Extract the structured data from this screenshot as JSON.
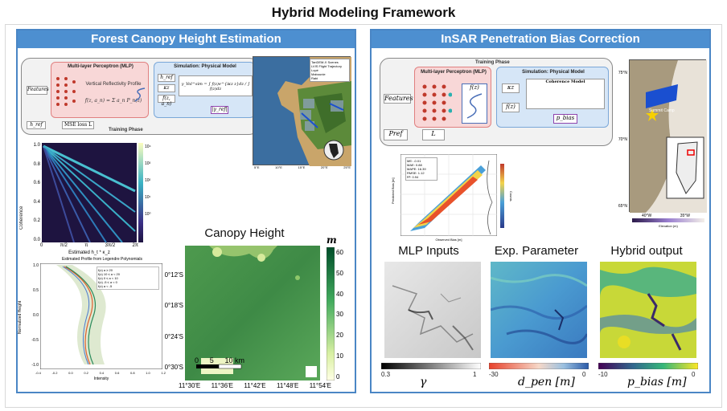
{
  "title": "Hybrid Modeling Framework",
  "left": {
    "header": "Forest Canopy Height Estimation",
    "flow": {
      "features": "Features",
      "mlp_title": "Multi-layer Perceptron (MLP)",
      "profile_title": "Vertical Reflectivity Profile",
      "profile_formula": "f(z, a_n) = Σ a_n P_n(z)",
      "sim_title": "Simulation: Physical Model",
      "h_ref": "h_ref",
      "kz": "κz",
      "fz": "f(z, a_n)",
      "gamma_formula": "γ_Vol^sim = ∫ f(z)e^{iκz z}dz / ∫ f(z)dz",
      "gamma_ref": "|γ_ref|",
      "h_obs": "h_ref",
      "loss": "MSE loss L",
      "phase": "Training Phase"
    },
    "map": {
      "legend": [
        "TanDEM-X Scenes",
        "LVIS Flight Trajectory",
        "Lopé",
        "Mabounie",
        "Rabi"
      ],
      "lon_ticks": [
        "5°E",
        "10°E",
        "15°E",
        "20°E",
        "25°E"
      ],
      "lat_ticks": [
        "5°N",
        "0°",
        "5°S",
        "10°S"
      ],
      "scale": "0 500 1000 km"
    },
    "heatmap": {
      "ylabel": "Coherence",
      "xlabel": "Estimated h_t * κ_z",
      "yticks": [
        "1.0",
        "0.8",
        "0.6",
        "0.4",
        "0.2",
        "0.0"
      ],
      "xticks": [
        "0",
        "π/2",
        "π",
        "3π/2",
        "2π"
      ],
      "cbar": [
        "10⁴",
        "10³",
        "10²",
        "10¹",
        "10⁰"
      ]
    },
    "profile": {
      "title": "Estimated Profile from Legendre Polynomials",
      "ylabel": "Normalized Height",
      "xlabel": "Intensity",
      "legend": [
        "f(z) a ≥ 20",
        "f(z) 10 ≤ a < 20",
        "f(z) 0 ≤ a < 10",
        "f(z) -5 ≤ a < 0",
        "f(z) a < -5"
      ],
      "yticks": [
        "1.0",
        "0.5",
        "0.0",
        "-0.5",
        "-1.0"
      ],
      "xticks": [
        "-0.4",
        "-0.2",
        "0.0",
        "0.2",
        "0.4",
        "0.6",
        "0.8",
        "1.0",
        "1.2"
      ]
    },
    "canopy": {
      "title": "Canopy Height",
      "unit": "m",
      "lat_ticks": [
        "0°12'S",
        "0°18'S",
        "0°24'S",
        "0°30'S"
      ],
      "lon_ticks": [
        "11°30'E",
        "11°36'E",
        "11°42'E",
        "11°48'E",
        "11°54'E"
      ],
      "cbar_ticks": [
        "60",
        "50",
        "40",
        "30",
        "20",
        "10",
        "0"
      ],
      "scale_labels": [
        "0",
        "5",
        "10 km"
      ]
    }
  },
  "right": {
    "header": "InSAR Penetration Bias Correction",
    "flow": {
      "features": "Features",
      "mlp_title": "Multi-layer Perceptron (MLP)",
      "sim_title": "Simulation: Physical Model",
      "coh_title": "Coherence Model",
      "kz": "κz",
      "fz": "f(z)",
      "fz_out": "f(z)",
      "p_bias": "p_bias",
      "p_ref": "Pref",
      "loss": "L",
      "phase": "Training Phase"
    },
    "scatter": {
      "stats": [
        "ME: -0.01",
        "MAE: 0.88",
        "MAPE: 16.39",
        "RMSE: 1.12",
        "R²: 0.94"
      ],
      "xlabel": "Observed Bias [m]",
      "ylabel": "Predicted Bias [m]",
      "cbar_label": "Counts"
    },
    "greenland": {
      "lat_ticks": [
        "75°N",
        "70°N",
        "65°N"
      ],
      "lon_ticks": [
        "40°W",
        "35°W"
      ],
      "camp": "Summit Camp",
      "scale": "0 100 200 km",
      "elev_label": "Elevation (m)"
    },
    "tiles": [
      {
        "title": "MLP Inputs",
        "cmin": "0.3",
        "cmax": "1",
        "symbol": "γ"
      },
      {
        "title": "Exp. Parameter",
        "cmin": "-30",
        "cmax": "0",
        "symbol": "d_pen [m]"
      },
      {
        "title": "Hybrid output",
        "cmin": "-10",
        "cmax": "0",
        "symbol": "p_bias [m]"
      }
    ]
  },
  "colors": {
    "header_blue": "#4d8fd0",
    "border_blue": "#4a86c5",
    "mlp_pink": "#f8d7d7",
    "sim_blue": "#d6e6f7"
  }
}
